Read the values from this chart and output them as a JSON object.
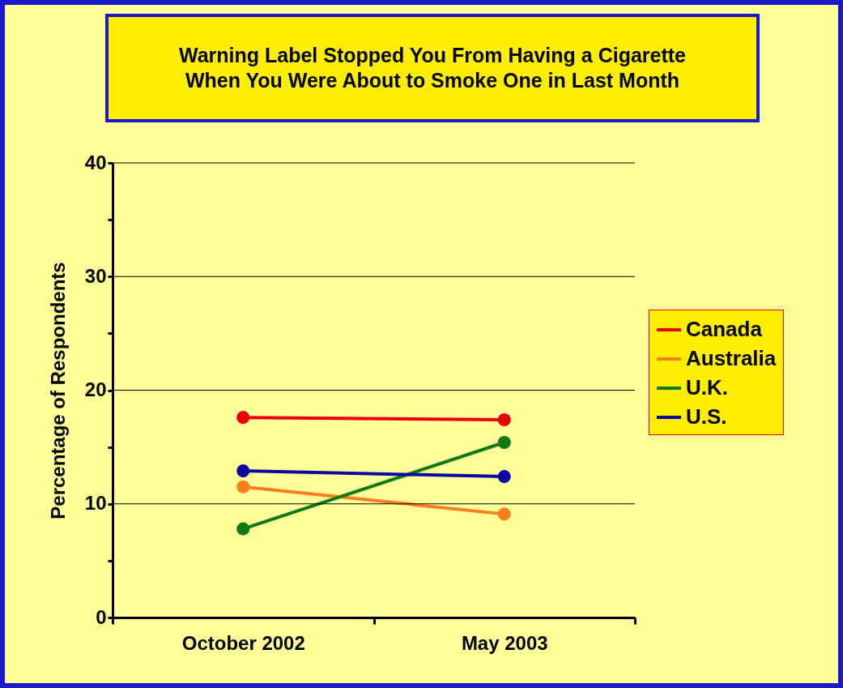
{
  "chart_data": {
    "type": "line",
    "title": "Warning Label Stopped You From Having a Cigarette When You Were About to Smoke One in Last Month",
    "ylabel": "Percentage of Respondents",
    "categories": [
      "October 2002",
      "May 2003"
    ],
    "series": [
      {
        "name": "Canada",
        "color": "#e8000b",
        "values": [
          17.6,
          17.4
        ]
      },
      {
        "name": "Australia",
        "color": "#ff7f1e",
        "values": [
          11.5,
          9.1
        ]
      },
      {
        "name": "U.K.",
        "color": "#0f7a12",
        "values": [
          7.8,
          15.4
        ]
      },
      {
        "name": "U.S.",
        "color": "#0a0aa0",
        "values": [
          12.9,
          12.4
        ]
      }
    ],
    "ylim": [
      0,
      40
    ],
    "yticks": [
      0,
      {
        "value": 5,
        "label": null
      },
      10,
      {
        "value": 15,
        "label": null
      },
      20,
      {
        "value": 25,
        "label": null
      },
      30,
      {
        "value": 35,
        "label": null
      },
      40
    ],
    "grid": "y",
    "legend": "right",
    "marker": "circle",
    "line_style": "solid"
  }
}
